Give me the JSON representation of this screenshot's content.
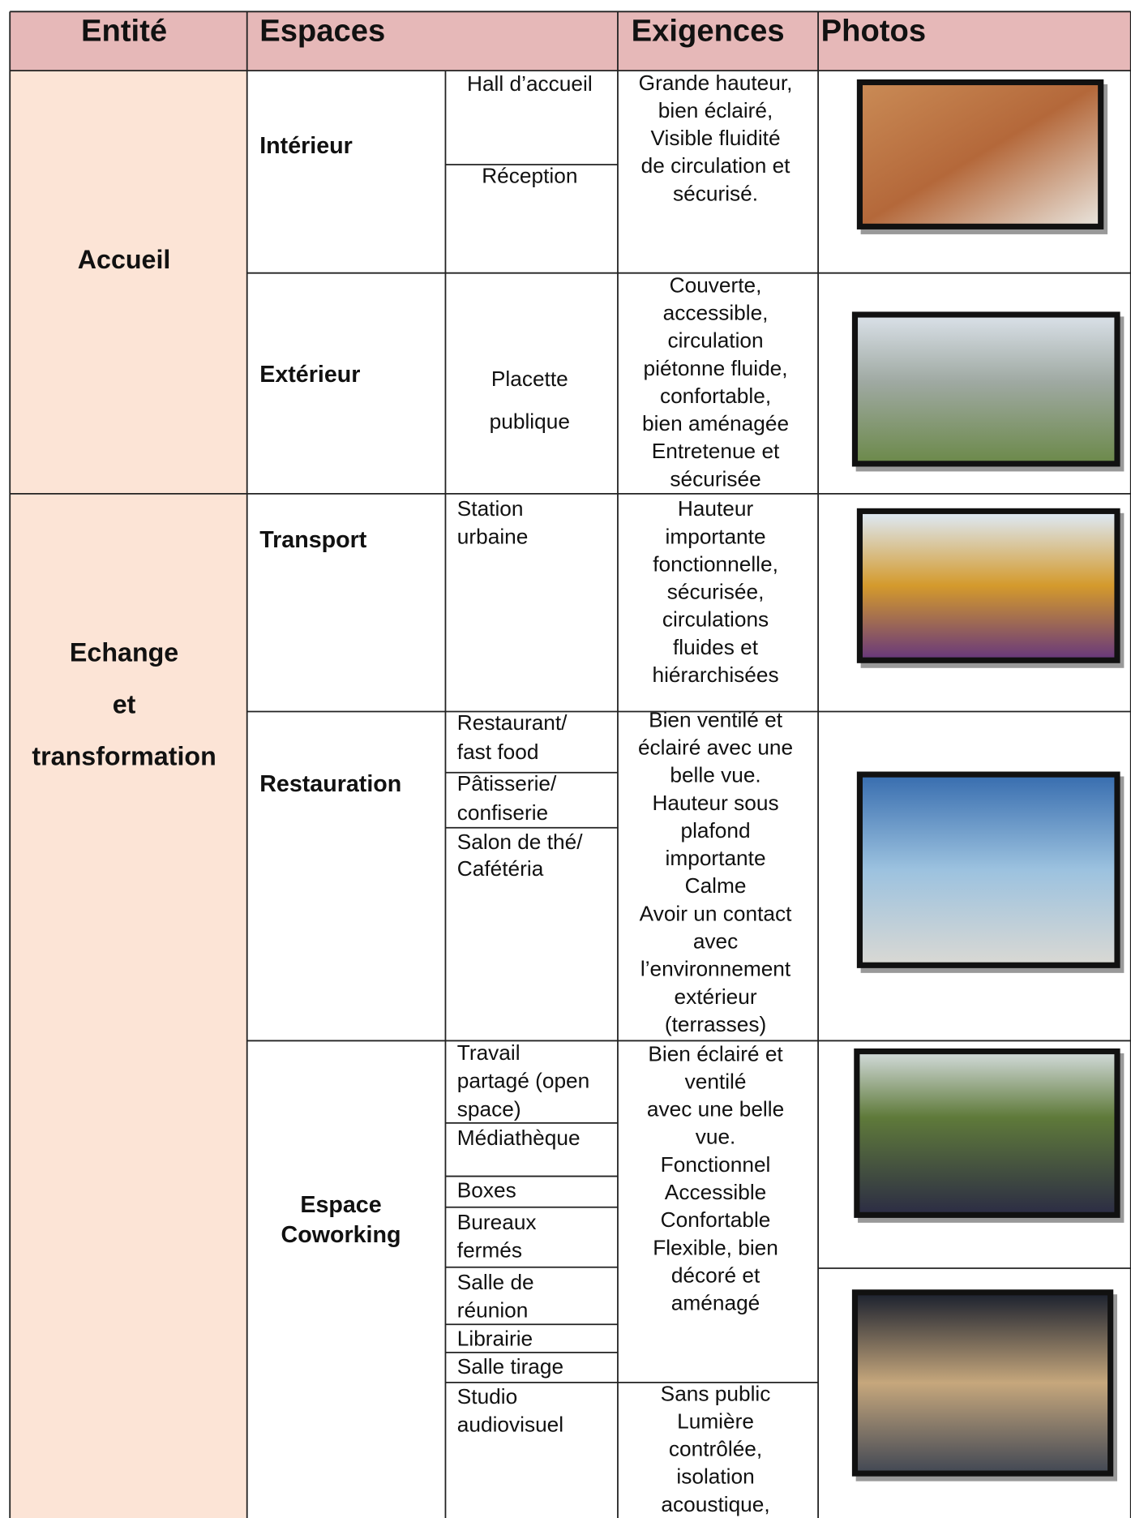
{
  "header": [
    "Entité",
    "Espaces",
    "Exigences",
    "Photos"
  ],
  "entities": [
    {
      "name": [
        "Accueil"
      ],
      "spaces": [
        {
          "name": [
            "Intérieur"
          ],
          "subspaces": [
            [
              "Hall d’accueil"
            ],
            [
              "Réception"
            ]
          ],
          "requirements": [
            [
              "Grande hauteur,",
              "bien éclairé,",
              "Visible fluidité",
              "de circulation et",
              "sécurisé."
            ]
          ]
        },
        {
          "name": [
            "Extérieur"
          ],
          "subspaces": [
            [
              "Placette",
              "publique"
            ]
          ],
          "requirements": [
            [
              "Couverte,",
              "accessible,",
              "circulation",
              "piétonne fluide,",
              "confortable,",
              "bien aménagée",
              "Entretenue et",
              "sécurisée"
            ]
          ]
        }
      ]
    },
    {
      "name": [
        "Echange",
        "et",
        "transformation"
      ],
      "spaces": [
        {
          "name": [
            "Transport"
          ],
          "subspaces": [
            [
              "Station",
              "urbaine"
            ]
          ],
          "requirements": [
            [
              "Hauteur",
              "importante",
              "fonctionnelle,",
              "sécurisée,",
              "circulations",
              "fluides et",
              "hiérarchisées"
            ]
          ]
        },
        {
          "name": [
            "Restauration"
          ],
          "subspaces": [
            [
              "Restaurant/",
              "fast food"
            ],
            [
              "Pâtisserie/",
              "confiserie"
            ],
            [
              "Salon de thé/",
              "Cafétéria"
            ]
          ],
          "requirements": [
            [
              "Bien ventilé et",
              "éclairé avec une",
              "belle vue.",
              "Hauteur sous",
              "plafond",
              "importante",
              "Calme",
              "Avoir un contact",
              "avec",
              "l’environnement",
              "extérieur",
              "(terrasses)"
            ]
          ]
        },
        {
          "name": [
            "Espace",
            "Coworking"
          ],
          "subspaces": [
            [
              "Travail",
              "partagé (open",
              "space)"
            ],
            [
              "Médiathèque"
            ],
            [
              "Boxes"
            ],
            [
              "Bureaux",
              "fermés"
            ],
            [
              "Salle de",
              "réunion"
            ],
            [
              "Librairie"
            ],
            [
              "Salle tirage"
            ],
            [
              "Studio",
              "audiovisuel"
            ]
          ],
          "requirements": [
            [
              "Bien éclairé et",
              "ventilé",
              "avec une belle",
              "vue.",
              "Fonctionnel",
              "Accessible",
              "Confortable",
              "Flexible, bien",
              "décoré et",
              "aménagé"
            ],
            [
              "Sans public",
              "Lumière",
              "contrôlée,",
              "isolation",
              "acoustique,"
            ]
          ]
        }
      ]
    }
  ]
}
